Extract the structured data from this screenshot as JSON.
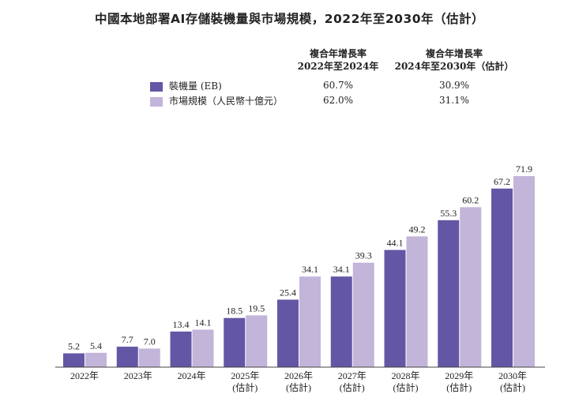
{
  "chart_data": {
    "type": "bar",
    "title": "中國本地部署AI存儲裝機量與市場規模，2022年至2030年（估計）",
    "categories": [
      [
        "2022年"
      ],
      [
        "2023年"
      ],
      [
        "2024年"
      ],
      [
        "2025年",
        "(估計)"
      ],
      [
        "2026年",
        "(估計)"
      ],
      [
        "2027年",
        "(估計)"
      ],
      [
        "2028年",
        "(估計)"
      ],
      [
        "2029年",
        "(估計)"
      ],
      [
        "2030年",
        "(估計)"
      ]
    ],
    "series": [
      {
        "name": "裝機量 (EB)",
        "color": "#6357A5",
        "values": [
          5.2,
          7.7,
          13.4,
          18.5,
          25.4,
          34.1,
          44.1,
          55.3,
          67.2
        ]
      },
      {
        "name": "市場規模（人民幣十億元）",
        "color": "#C3B4D9",
        "values": [
          5.4,
          7.0,
          14.1,
          19.5,
          34.1,
          39.3,
          49.2,
          60.2,
          71.9
        ]
      }
    ],
    "ylim": [
      0,
      75
    ],
    "grid": false,
    "xlabel": "",
    "ylabel": "",
    "cagr_table": {
      "headers": [
        [
          "複合年增長率",
          "2022年至2024年"
        ],
        [
          "複合年增長率",
          "2024年至2030年（估計）"
        ]
      ],
      "rows": [
        [
          "60.7%",
          "30.9%"
        ],
        [
          "62.0%",
          "31.1%"
        ]
      ]
    }
  }
}
